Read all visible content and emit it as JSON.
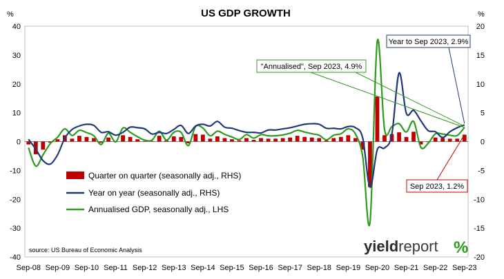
{
  "chart_data": {
    "type": "bar+line",
    "title": "US GDP GROWTH",
    "left_unit": "%",
    "right_unit": "%",
    "left_axis": {
      "min": -40,
      "max": 40,
      "ticks": [
        -40,
        -30,
        -20,
        -10,
        0,
        10,
        20,
        30,
        40
      ]
    },
    "right_axis": {
      "min": -20,
      "max": 20,
      "ticks": [
        -20,
        -15,
        -10,
        -5,
        0,
        5,
        10,
        15,
        20
      ]
    },
    "x_tick_labels": [
      "Sep-08",
      "Sep-09",
      "Sep-10",
      "Sep-11",
      "Sep-12",
      "Sep-13",
      "Sep-14",
      "Sep-15",
      "Sep-16",
      "Sep-17",
      "Sep-18",
      "Sep-19",
      "Sep-20",
      "Sep-21",
      "Sep-22",
      "Sep-23"
    ],
    "quarters": [
      "Sep-08",
      "Dec-08",
      "Mar-09",
      "Jun-09",
      "Sep-09",
      "Dec-09",
      "Mar-10",
      "Jun-10",
      "Sep-10",
      "Dec-10",
      "Mar-11",
      "Jun-11",
      "Sep-11",
      "Dec-11",
      "Mar-12",
      "Jun-12",
      "Sep-12",
      "Dec-12",
      "Mar-13",
      "Jun-13",
      "Sep-13",
      "Dec-13",
      "Mar-14",
      "Jun-14",
      "Sep-14",
      "Dec-14",
      "Mar-15",
      "Jun-15",
      "Sep-15",
      "Dec-15",
      "Mar-16",
      "Jun-16",
      "Sep-16",
      "Dec-16",
      "Mar-17",
      "Jun-17",
      "Sep-17",
      "Dec-17",
      "Mar-18",
      "Jun-18",
      "Sep-18",
      "Dec-18",
      "Mar-19",
      "Jun-19",
      "Sep-19",
      "Dec-19",
      "Mar-20",
      "Jun-20",
      "Sep-20",
      "Dec-20",
      "Mar-21",
      "Jun-21",
      "Sep-21",
      "Dec-21",
      "Mar-22",
      "Jun-22",
      "Sep-22",
      "Dec-22",
      "Mar-23",
      "Jun-23",
      "Sep-23"
    ],
    "series": [
      {
        "name": "Quarter on quarter (seasonally adj., RHS)",
        "type": "bar",
        "axis": "right",
        "color": "#c00000",
        "values": [
          -0.5,
          -2.2,
          -1.4,
          -0.2,
          0.4,
          1.1,
          0.5,
          1.0,
          0.8,
          0.6,
          -0.2,
          0.7,
          0.0,
          1.1,
          0.8,
          0.4,
          0.1,
          0.1,
          1.0,
          0.2,
          0.9,
          0.8,
          -0.3,
          1.3,
          1.2,
          0.5,
          0.9,
          0.6,
          0.4,
          0.2,
          0.6,
          0.3,
          0.6,
          0.5,
          0.5,
          0.6,
          0.7,
          1.0,
          0.8,
          0.7,
          0.6,
          0.2,
          0.6,
          0.8,
          1.1,
          0.6,
          -1.4,
          -7.9,
          7.8,
          1.1,
          1.3,
          1.6,
          0.8,
          1.7,
          -0.5,
          -0.1,
          0.7,
          0.6,
          0.5,
          0.5,
          1.2
        ]
      },
      {
        "name": "Year on year (seasonally adj., RHS)",
        "type": "line",
        "axis": "right",
        "color": "#1f3878",
        "values": [
          0.4,
          -1.3,
          -3.3,
          -3.9,
          -2.3,
          0.6,
          2.1,
          2.7,
          3.0,
          2.8,
          1.6,
          1.7,
          1.1,
          1.6,
          2.5,
          2.4,
          2.2,
          1.3,
          1.6,
          1.4,
          2.1,
          2.8,
          1.4,
          2.7,
          3.0,
          2.7,
          3.5,
          2.5,
          2.3,
          1.9,
          1.6,
          1.6,
          1.5,
          2.0,
          2.0,
          2.2,
          2.4,
          2.7,
          3.0,
          3.1,
          3.0,
          2.3,
          2.3,
          2.2,
          2.6,
          2.4,
          0.6,
          -7.9,
          -1.4,
          -1.1,
          1.2,
          11.9,
          4.9,
          5.4,
          3.6,
          1.9,
          1.7,
          0.7,
          1.7,
          2.4,
          2.9
        ]
      },
      {
        "name": "Annualised GDP, seasonally adj., LHS",
        "type": "line",
        "axis": "left",
        "color": "#2e9a1e",
        "values": [
          -2.1,
          -8.5,
          -4.6,
          -0.7,
          1.5,
          4.4,
          2.1,
          3.9,
          3.1,
          2.0,
          -1.0,
          2.9,
          -0.1,
          4.7,
          3.2,
          1.7,
          0.5,
          0.5,
          3.6,
          0.5,
          3.2,
          3.2,
          -1.4,
          5.2,
          4.7,
          2.0,
          3.6,
          2.5,
          1.6,
          0.7,
          2.4,
          1.2,
          2.4,
          2.0,
          2.0,
          2.3,
          2.9,
          3.9,
          3.3,
          2.7,
          2.2,
          0.6,
          2.2,
          2.7,
          4.4,
          2.6,
          -5.3,
          -28.0,
          34.8,
          4.2,
          5.2,
          6.2,
          3.3,
          7.0,
          -2.0,
          -0.6,
          2.7,
          2.6,
          2.2,
          2.1,
          4.9
        ]
      }
    ],
    "annotations": [
      {
        "text": "Year to Sep 2023, 2.9%",
        "color": "#1f3878"
      },
      {
        "text": "\"Annualised\", Sep 2023, 4.9%",
        "color": "#2e9a1e"
      },
      {
        "text": "Sep 2023, 1.2%",
        "color": "#c00000"
      }
    ],
    "legend_position": "lower-left",
    "grid": false,
    "source": "source: US Bureau of Economic Analysis",
    "logo": {
      "word1": "yield",
      "word2": "report",
      "glyph": "%"
    }
  }
}
